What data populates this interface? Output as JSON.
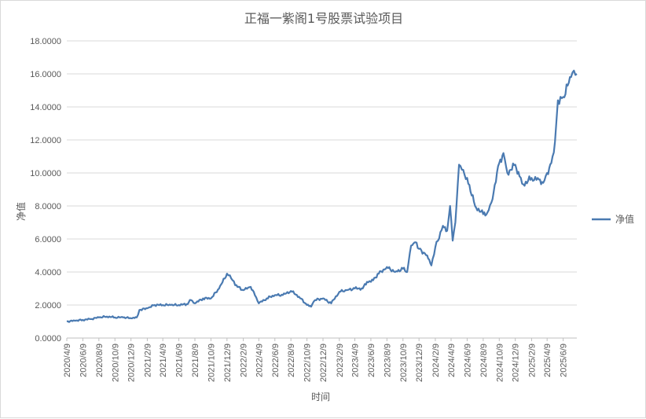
{
  "chart_data": {
    "type": "line",
    "title": "正福一紫阁1号股票试验项目",
    "xlabel": "时间",
    "ylabel": "净值",
    "ylim": [
      0,
      18
    ],
    "ytick_step": 2,
    "ytick_labels": [
      "0.0000",
      "2.0000",
      "4.0000",
      "6.0000",
      "8.0000",
      "10.0000",
      "12.0000",
      "14.0000",
      "16.0000",
      "18.0000"
    ],
    "x_range": [
      "2020/4/9",
      "2025/7/31"
    ],
    "x_tick_labels": [
      "2020/4/9",
      "2020/6/9",
      "2020/8/9",
      "2020/10/9",
      "2020/12/9",
      "2021/2/9",
      "2021/4/9",
      "2021/6/9",
      "2021/8/9",
      "2021/10/9",
      "2021/12/9",
      "2022/2/9",
      "2022/4/9",
      "2022/6/9",
      "2022/8/9",
      "2022/10/9",
      "2022/12/9",
      "2023/2/9",
      "2023/4/9",
      "2023/6/9",
      "2023/8/9",
      "2023/10/9",
      "2023/12/9",
      "2024/2/9",
      "2024/4/9",
      "2024/6/9",
      "2024/8/9",
      "2024/10/9",
      "2024/12/9",
      "2025/2/9",
      "2025/4/9",
      "2025/6/9"
    ],
    "grid": "horizontal",
    "legend_position": "right",
    "series": [
      {
        "name": "净值",
        "color": "#4a7ab1",
        "points": [
          [
            "2020/4/9",
            1.0
          ],
          [
            "2020/5/9",
            1.05
          ],
          [
            "2020/6/9",
            1.1
          ],
          [
            "2020/7/9",
            1.15
          ],
          [
            "2020/8/9",
            1.25
          ],
          [
            "2020/9/9",
            1.3
          ],
          [
            "2020/10/9",
            1.25
          ],
          [
            "2020/11/9",
            1.25
          ],
          [
            "2020/12/9",
            1.2
          ],
          [
            "2020/12/31",
            1.25
          ],
          [
            "2021/1/10",
            1.7
          ],
          [
            "2021/2/9",
            1.8
          ],
          [
            "2021/3/9",
            2.0
          ],
          [
            "2021/4/9",
            2.0
          ],
          [
            "2021/5/9",
            2.0
          ],
          [
            "2021/6/9",
            2.0
          ],
          [
            "2021/7/9",
            2.05
          ],
          [
            "2021/7/25",
            2.3
          ],
          [
            "2021/8/9",
            2.1
          ],
          [
            "2021/9/9",
            2.4
          ],
          [
            "2021/10/9",
            2.4
          ],
          [
            "2021/11/9",
            3.0
          ],
          [
            "2021/12/9",
            3.9
          ],
          [
            "2021/12/20",
            3.8
          ],
          [
            "2022/1/9",
            3.2
          ],
          [
            "2022/2/9",
            2.9
          ],
          [
            "2022/3/9",
            3.1
          ],
          [
            "2022/3/25",
            2.6
          ],
          [
            "2022/4/9",
            2.1
          ],
          [
            "2022/5/9",
            2.4
          ],
          [
            "2022/6/9",
            2.6
          ],
          [
            "2022/7/9",
            2.6
          ],
          [
            "2022/8/9",
            2.85
          ],
          [
            "2022/9/9",
            2.5
          ],
          [
            "2022/10/9",
            2.0
          ],
          [
            "2022/10/25",
            1.9
          ],
          [
            "2022/11/9",
            2.3
          ],
          [
            "2022/12/9",
            2.4
          ],
          [
            "2023/1/9",
            2.1
          ],
          [
            "2023/2/9",
            2.8
          ],
          [
            "2023/3/9",
            2.9
          ],
          [
            "2023/4/9",
            3.0
          ],
          [
            "2023/5/9",
            3.0
          ],
          [
            "2023/5/25",
            3.4
          ],
          [
            "2023/6/9",
            3.4
          ],
          [
            "2023/7/9",
            3.9
          ],
          [
            "2023/8/9",
            4.3
          ],
          [
            "2023/9/9",
            4.0
          ],
          [
            "2023/10/9",
            4.2
          ],
          [
            "2023/10/25",
            4.0
          ],
          [
            "2023/11/9",
            5.6
          ],
          [
            "2023/11/25",
            5.8
          ],
          [
            "2023/12/9",
            5.4
          ],
          [
            "2024/1/9",
            5.0
          ],
          [
            "2024/1/25",
            4.4
          ],
          [
            "2024/2/9",
            5.5
          ],
          [
            "2024/3/9",
            6.8
          ],
          [
            "2024/3/25",
            6.5
          ],
          [
            "2024/4/5",
            8.0
          ],
          [
            "2024/4/15",
            5.9
          ],
          [
            "2024/4/25",
            7.0
          ],
          [
            "2024/5/9",
            10.5
          ],
          [
            "2024/5/20",
            10.2
          ],
          [
            "2024/6/9",
            9.7
          ],
          [
            "2024/7/9",
            8.0
          ],
          [
            "2024/8/9",
            7.5
          ],
          [
            "2024/8/25",
            7.6
          ],
          [
            "2024/9/9",
            8.2
          ],
          [
            "2024/10/9",
            10.6
          ],
          [
            "2024/10/25",
            11.2
          ],
          [
            "2024/11/9",
            10.0
          ],
          [
            "2024/12/9",
            10.5
          ],
          [
            "2024/12/25",
            9.8
          ],
          [
            "2025/1/9",
            9.3
          ],
          [
            "2025/2/9",
            9.7
          ],
          [
            "2025/3/9",
            9.6
          ],
          [
            "2025/3/25",
            9.4
          ],
          [
            "2025/4/9",
            10.0
          ],
          [
            "2025/4/25",
            10.6
          ],
          [
            "2025/5/9",
            11.9
          ],
          [
            "2025/5/20",
            14.4
          ],
          [
            "2025/6/9",
            14.6
          ],
          [
            "2025/7/9",
            15.8
          ],
          [
            "2025/7/20",
            16.2
          ],
          [
            "2025/7/31",
            16.0
          ]
        ]
      }
    ]
  }
}
